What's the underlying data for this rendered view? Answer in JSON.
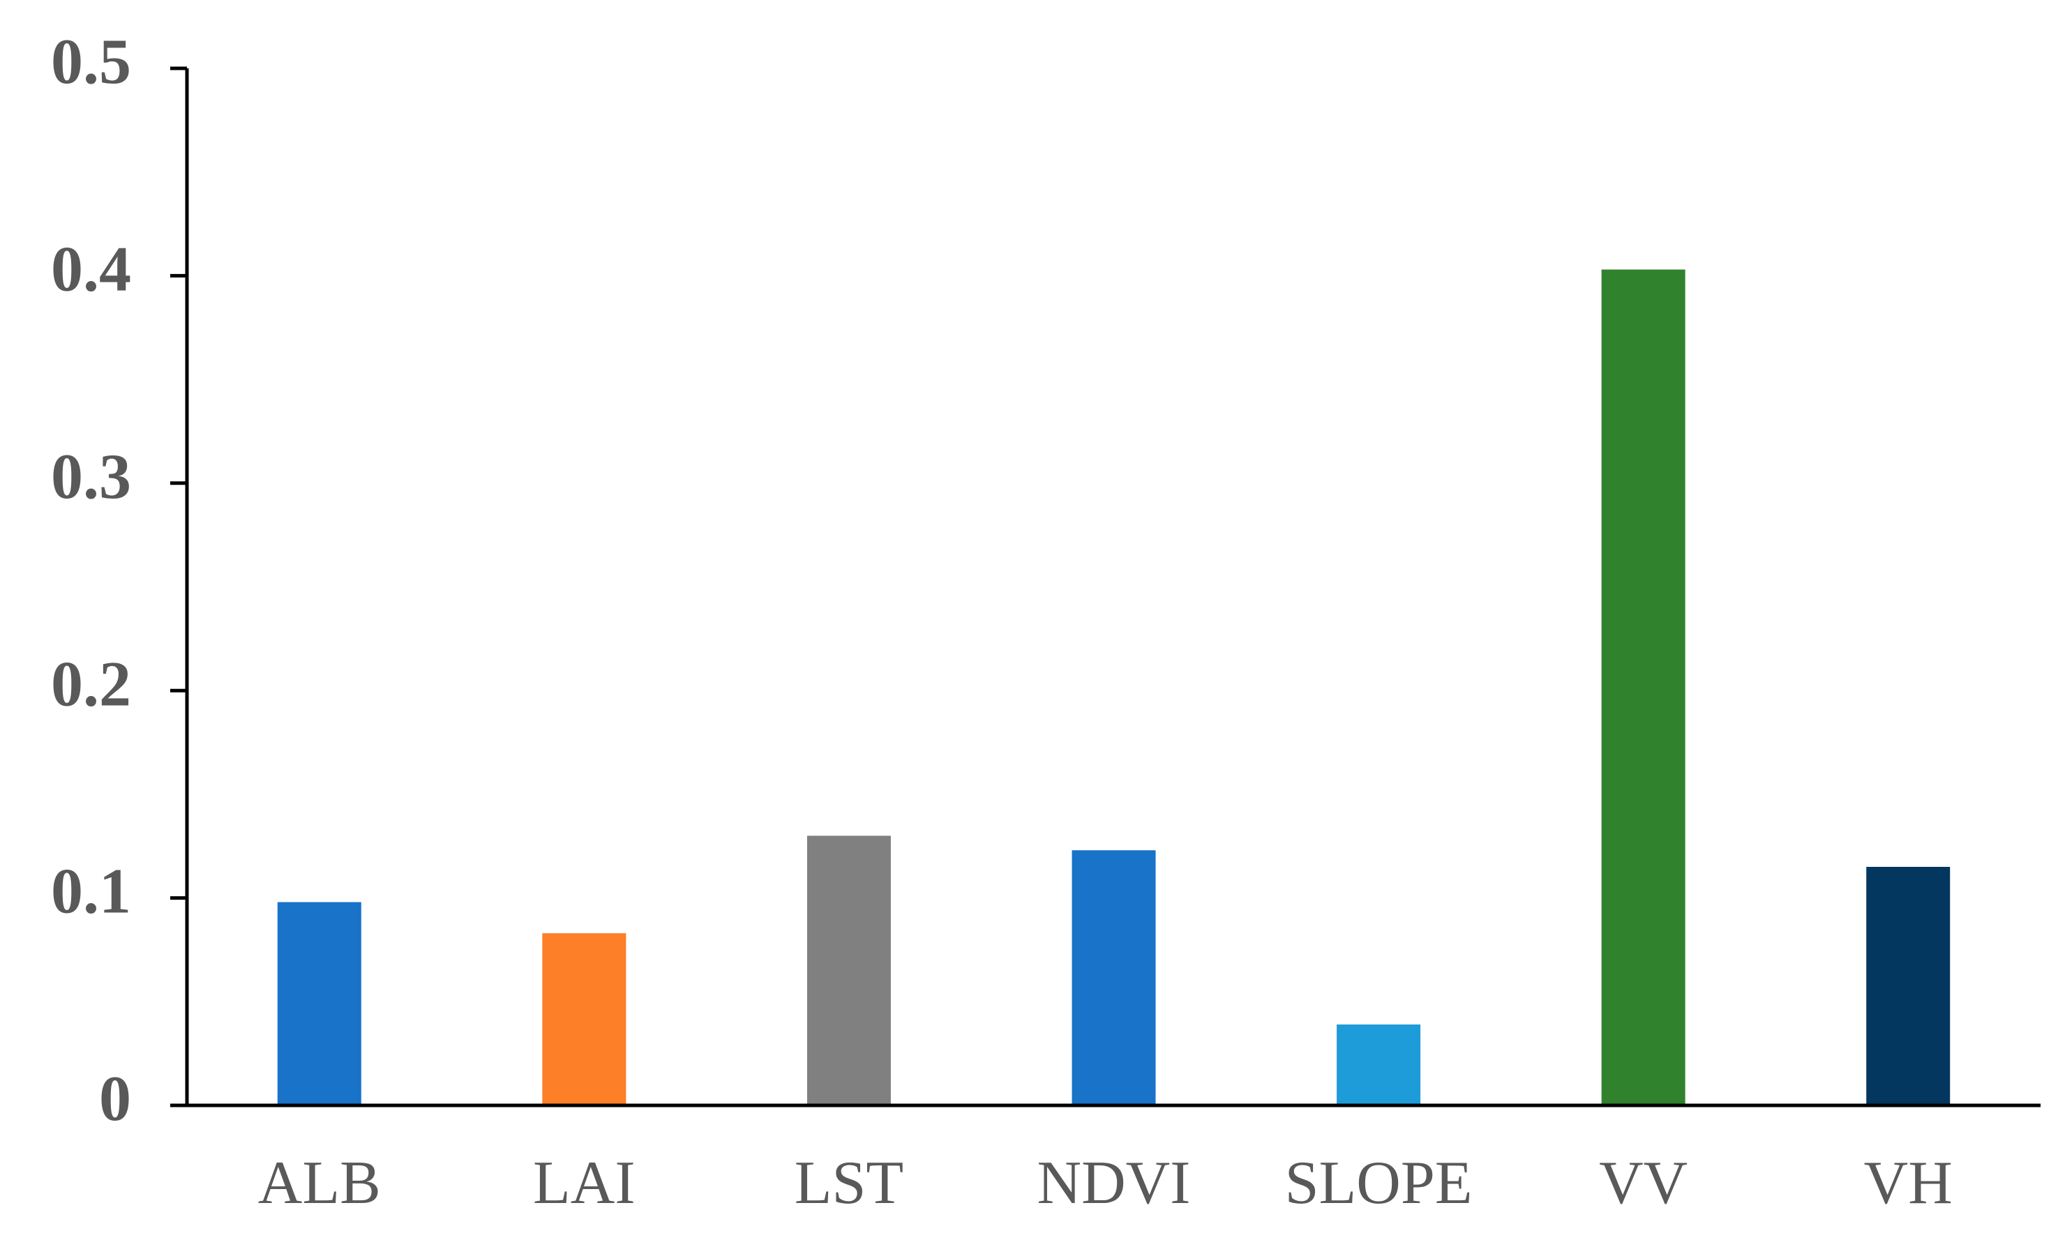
{
  "chart_data": {
    "type": "bar",
    "categories": [
      "ALB",
      "LAI",
      "LST",
      "NDVI",
      "SLOPE",
      "VV",
      "VH"
    ],
    "values": [
      0.098,
      0.083,
      0.13,
      0.123,
      0.039,
      0.403,
      0.115
    ],
    "colors": [
      "#1873c9",
      "#fd7f27",
      "#808080",
      "#1873c9",
      "#1e9cd9",
      "#31822d",
      "#03375f"
    ],
    "ylim": [
      0,
      0.5
    ],
    "yticks": [
      0,
      0.1,
      0.2,
      0.3,
      0.4,
      0.5
    ],
    "grid": false
  }
}
